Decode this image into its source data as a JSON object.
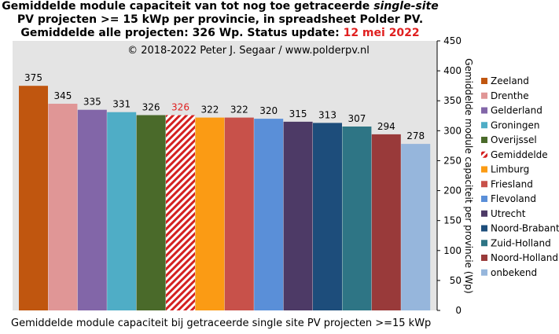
{
  "title": {
    "line1_prefix": "Gemiddelde module capaciteit van tot nog toe getraceerde ",
    "line1_italic": "single-site",
    "line2": "PV projecten >= 15 kWp per provincie, in spreadsheet Polder PV.",
    "line3_prefix": "Gemiddelde alle projecten: 326 Wp. Status update: ",
    "line3_date": "12 mei 2022"
  },
  "copyright": "© 2018-2022  Peter J. Segaar / www.polderpv.nl",
  "colors": {
    "plot_background": "#e4e4e4",
    "date_highlight": "#e02020",
    "hatched_label": "#e02020"
  },
  "chart_data": {
    "type": "bar",
    "categories": [
      "Zeeland",
      "Drenthe",
      "Gelderland",
      "Groningen",
      "Overijssel",
      "Gemiddelde",
      "Limburg",
      "Friesland",
      "Flevoland",
      "Utrecht",
      "Noord-Brabant",
      "Zuid-Holland",
      "Noord-Holland",
      "onbekend"
    ],
    "values": [
      375,
      345,
      335,
      331,
      326,
      326,
      322,
      322,
      320,
      315,
      313,
      307,
      294,
      278
    ],
    "colors": [
      "#c0560f",
      "#e09696",
      "#8266a8",
      "#4fadc6",
      "#4a6a2a",
      "hatch-red",
      "#fb9b14",
      "#c8514a",
      "#5a8fd8",
      "#4d3a66",
      "#1d4d7b",
      "#2e7585",
      "#993a3a",
      "#96b6dc"
    ],
    "ylim": [
      0,
      450
    ],
    "yticks": [
      0,
      50,
      100,
      150,
      200,
      250,
      300,
      350,
      400,
      450
    ],
    "ylabel": "Gemiddelde module capaciteit per provincie (Wp)",
    "xlabel": "Gemiddelde module capaciteit bij getraceerde single site PV projecten >=15 kWp",
    "legend_position": "right",
    "grid": false
  }
}
